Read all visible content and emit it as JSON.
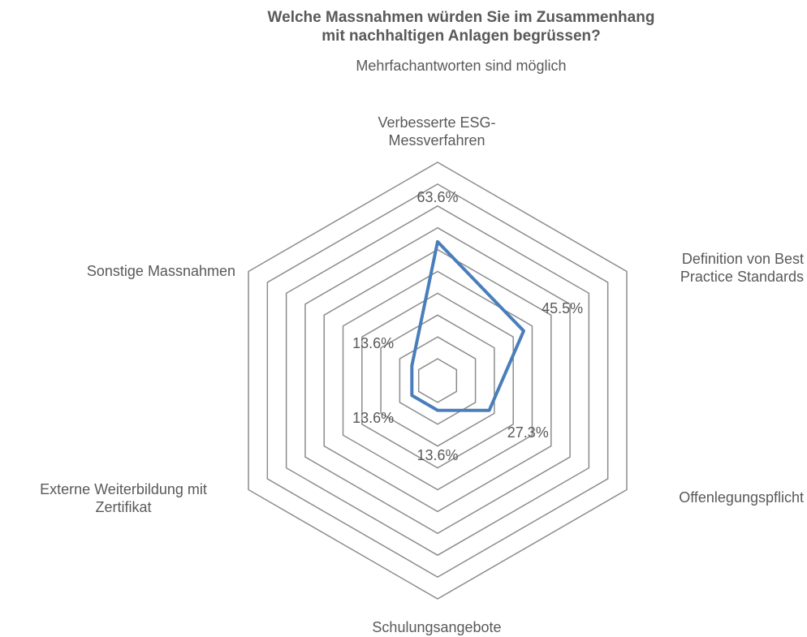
{
  "chart_data": {
    "type": "radar",
    "title": "Welche Massnahmen würden Sie im Zusammenhang\nmit nachhaltigen Anlagen begrüssen?",
    "subtitle": "Mehrfachantworten sind möglich",
    "categories": [
      "Verbesserte ESG-\nMessverfahren",
      "Definition von Best\nPractice Standards",
      "Offenlegungspflicht",
      "Schulungsangebote",
      "Externe Weiterbildung mit\nZertifikat",
      "Sonstige Massnahmen"
    ],
    "values": [
      63.6,
      45.5,
      27.3,
      13.6,
      13.6,
      13.6
    ],
    "value_labels": [
      "63.6%",
      "45.5%",
      "27.3%",
      "13.6%",
      "13.6%",
      "13.6%"
    ],
    "color": "#4a7ebb",
    "ylim": [
      0,
      100
    ],
    "yticks": [
      10,
      20,
      30,
      40,
      50,
      60,
      70,
      80,
      90,
      100
    ],
    "grid": true
  }
}
